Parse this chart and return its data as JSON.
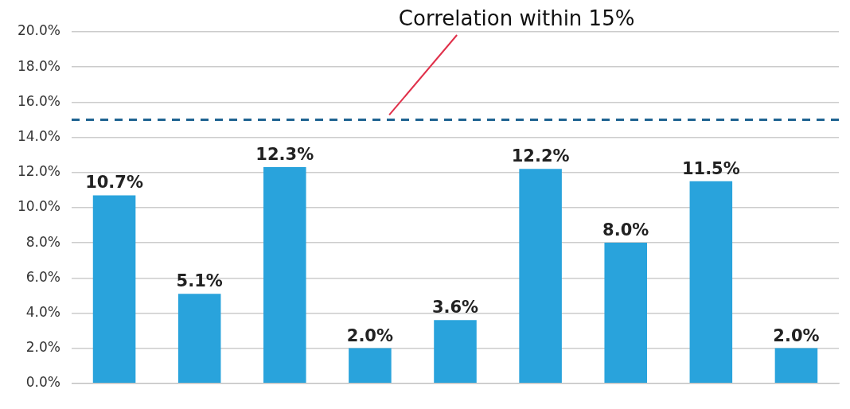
{
  "chart_data": {
    "type": "bar",
    "categories": [
      null,
      null,
      null,
      null,
      null,
      null,
      null,
      null,
      null
    ],
    "values": [
      10.7,
      5.1,
      12.3,
      2.0,
      3.6,
      12.2,
      8.0,
      11.5,
      2.0
    ],
    "value_labels": [
      "10.7%",
      "5.1%",
      "12.3%",
      "2.0%",
      "3.6%",
      "12.2%",
      "8.0%",
      "11.5%",
      "2.0%"
    ],
    "color": "#29a3dc",
    "ylim": [
      0,
      20
    ],
    "yticks": [
      {
        "value": 0,
        "label": "0.0%"
      },
      {
        "value": 2,
        "label": "2.0%"
      },
      {
        "value": 4,
        "label": "4.0%"
      },
      {
        "value": 6,
        "label": "6.0%"
      },
      {
        "value": 8,
        "label": "8.0%"
      },
      {
        "value": 10,
        "label": "10.0%"
      },
      {
        "value": 12,
        "label": "12.0%"
      },
      {
        "value": 14,
        "label": "14.0%"
      },
      {
        "value": 16,
        "label": "16.0%"
      },
      {
        "value": 18,
        "label": "18.0%"
      },
      {
        "value": 20,
        "label": "20.0%"
      }
    ],
    "grid": "y",
    "tick_labels": "y",
    "ref_lines": [
      {
        "axis": "y",
        "value": 15,
        "label": "Correlation within 15%",
        "color": "#1f6391",
        "line_style": "dashed"
      }
    ]
  }
}
